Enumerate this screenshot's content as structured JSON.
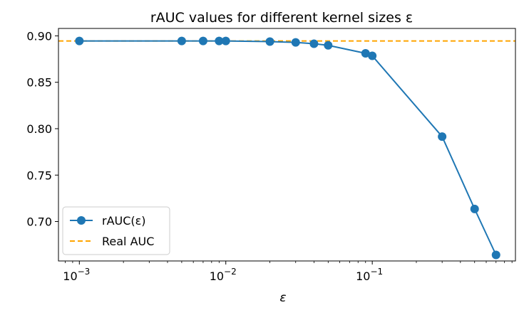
{
  "chart_data": {
    "type": "line",
    "title": "rAUC values for different kernel sizes ε",
    "xlabel": "ε",
    "ylabel": "",
    "xscale": "log",
    "xlim": [
      0.00072,
      0.95
    ],
    "ylim": [
      0.6575,
      0.908
    ],
    "yticks": [
      "0.70",
      "0.75",
      "0.80",
      "0.85",
      "0.90"
    ],
    "ytick_values": [
      0.7,
      0.75,
      0.8,
      0.85,
      0.9
    ],
    "xticks": [
      {
        "base": "10",
        "exp": "−3",
        "value": 0.001
      },
      {
        "base": "10",
        "exp": "−2",
        "value": 0.01
      },
      {
        "base": "10",
        "exp": "−1",
        "value": 0.1
      }
    ],
    "grid": false,
    "legend_position": "bottom-left",
    "series": [
      {
        "name": "rAUC(ε)",
        "color": "#1f77b4",
        "style": "solid-with-markers",
        "x": [
          0.001,
          0.005,
          0.007,
          0.009,
          0.01,
          0.02,
          0.03,
          0.04,
          0.05,
          0.09,
          0.1,
          0.3,
          0.5,
          0.7
        ],
        "y": [
          0.8945,
          0.8945,
          0.8945,
          0.8945,
          0.8945,
          0.8938,
          0.893,
          0.8915,
          0.8898,
          0.8812,
          0.8785,
          0.7915,
          0.7135,
          0.664
        ]
      },
      {
        "name": "Real AUC",
        "color": "#ffa500",
        "style": "dashed",
        "y_constant": 0.8945
      }
    ]
  }
}
